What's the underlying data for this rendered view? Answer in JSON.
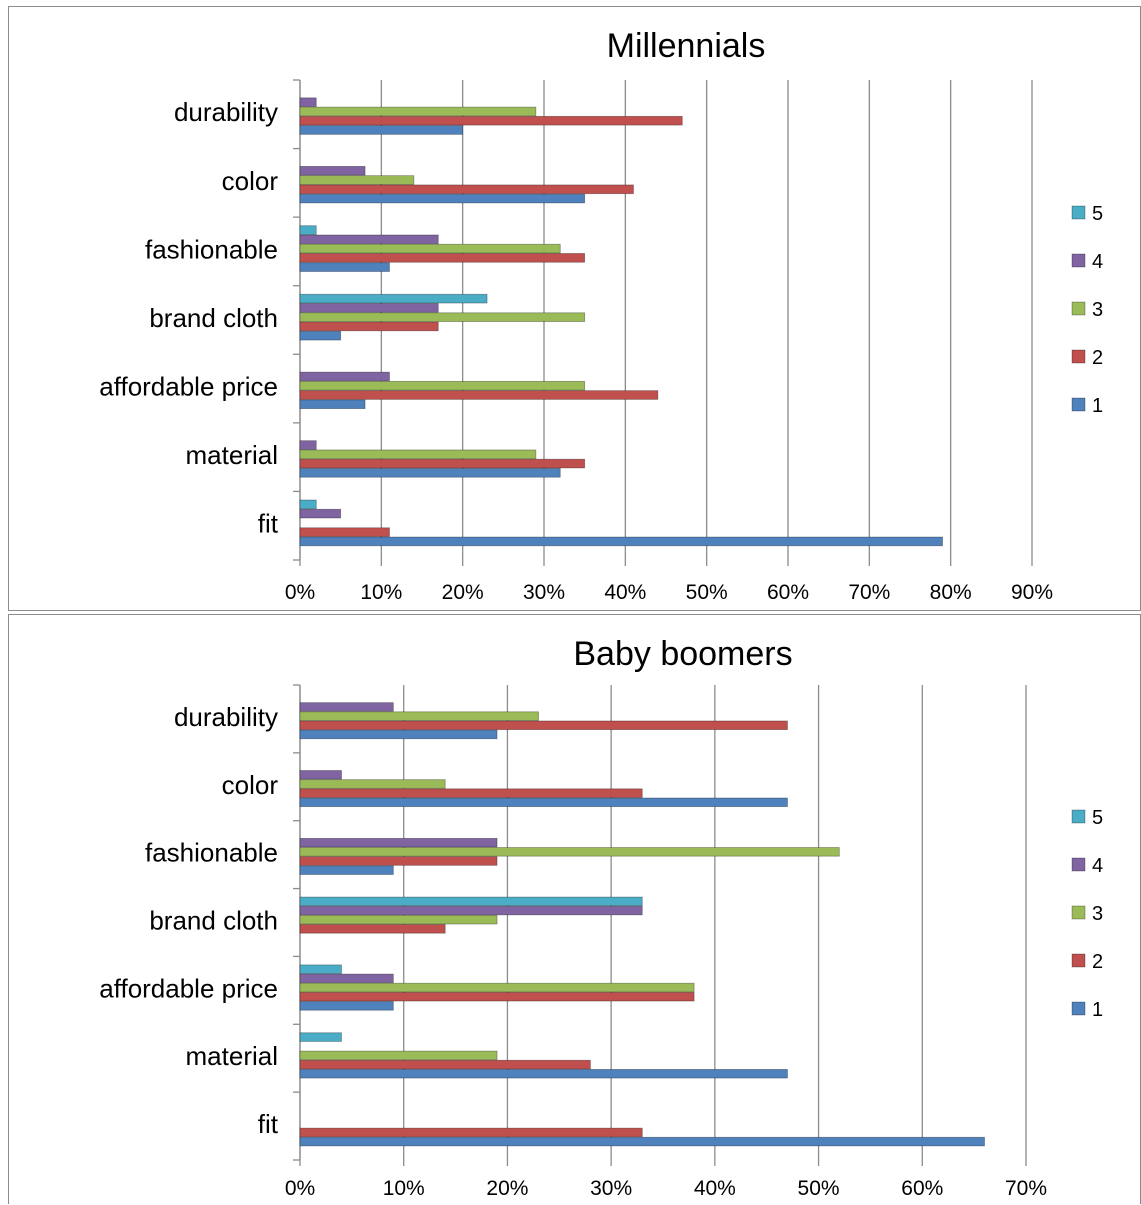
{
  "chart_data": [
    {
      "type": "bar",
      "orientation": "horizontal",
      "title": "Millennials",
      "categories": [
        "fit",
        "material",
        "affordable price",
        "brand cloth",
        "fashionable",
        "color",
        "durability"
      ],
      "series": [
        {
          "name": "1",
          "color": "#4f81bd",
          "values": [
            79,
            32,
            8,
            5,
            11,
            35,
            20
          ]
        },
        {
          "name": "2",
          "color": "#c0504d",
          "values": [
            11,
            35,
            44,
            17,
            35,
            41,
            47
          ]
        },
        {
          "name": "3",
          "color": "#9bbb59",
          "values": [
            0,
            29,
            35,
            35,
            32,
            14,
            29
          ]
        },
        {
          "name": "4",
          "color": "#8064a2",
          "values": [
            5,
            2,
            11,
            17,
            17,
            8,
            2
          ]
        },
        {
          "name": "5",
          "color": "#4bacc6",
          "values": [
            2,
            0,
            0,
            23,
            2,
            0,
            0
          ]
        }
      ],
      "xlim": [
        0,
        90
      ],
      "ticks": [
        "0%",
        "10%",
        "20%",
        "30%",
        "40%",
        "50%",
        "60%",
        "70%",
        "80%",
        "90%"
      ],
      "grid": "vertical",
      "legend": "right"
    },
    {
      "type": "bar",
      "orientation": "horizontal",
      "title": "Baby boomers",
      "categories": [
        "fit",
        "material",
        "affordable price",
        "brand cloth",
        "fashionable",
        "color",
        "durability"
      ],
      "series": [
        {
          "name": "1",
          "color": "#4f81bd",
          "values": [
            66,
            47,
            9,
            0,
            9,
            47,
            19
          ]
        },
        {
          "name": "2",
          "color": "#c0504d",
          "values": [
            33,
            28,
            38,
            14,
            19,
            33,
            47
          ]
        },
        {
          "name": "3",
          "color": "#9bbb59",
          "values": [
            0,
            19,
            38,
            19,
            52,
            14,
            23
          ]
        },
        {
          "name": "4",
          "color": "#8064a2",
          "values": [
            0,
            0,
            9,
            33,
            19,
            4,
            9
          ]
        },
        {
          "name": "5",
          "color": "#4bacc6",
          "values": [
            0,
            4,
            4,
            33,
            0,
            0,
            0
          ]
        }
      ],
      "xlim": [
        0,
        70
      ],
      "ticks": [
        "0%",
        "10%",
        "20%",
        "30%",
        "40%",
        "50%",
        "60%",
        "70%"
      ],
      "grid": "vertical",
      "legend": "right"
    }
  ]
}
